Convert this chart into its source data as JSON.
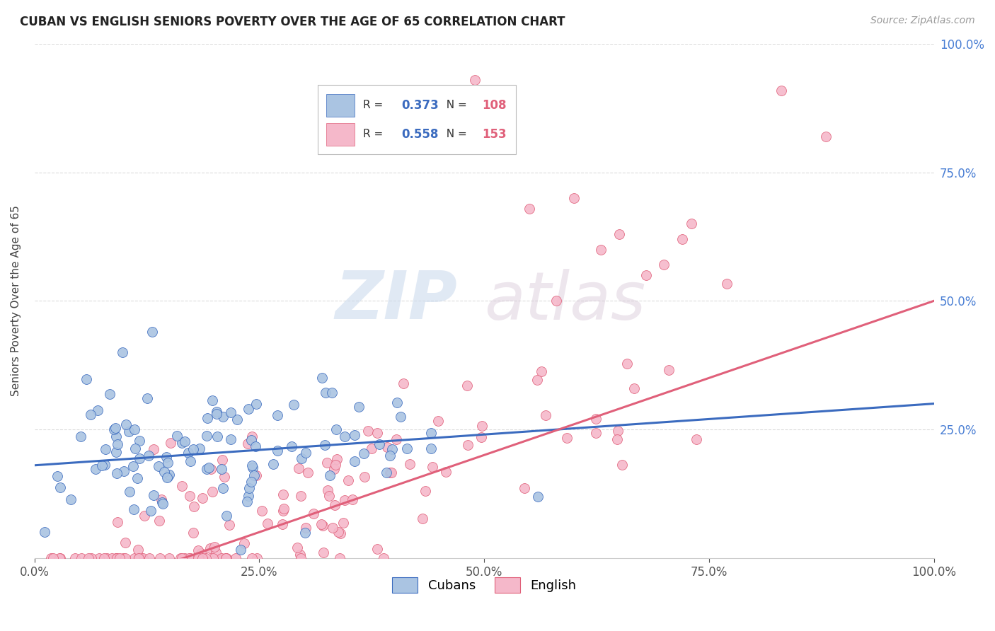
{
  "title": "CUBAN VS ENGLISH SENIORS POVERTY OVER THE AGE OF 65 CORRELATION CHART",
  "source": "Source: ZipAtlas.com",
  "ylabel": "Seniors Poverty Over the Age of 65",
  "watermark_zip": "ZIP",
  "watermark_atlas": "atlas",
  "cubans_R": 0.373,
  "cubans_N": 108,
  "english_R": 0.558,
  "english_N": 153,
  "cubans_color": "#aac4e2",
  "cubans_line_color": "#3b6bbf",
  "english_color": "#f5b8ca",
  "english_line_color": "#e0607a",
  "background_color": "#ffffff",
  "grid_color": "#cccccc",
  "title_color": "#222222",
  "right_axis_color": "#4a7fd4",
  "xlim": [
    0,
    1
  ],
  "ylim": [
    0,
    1
  ]
}
